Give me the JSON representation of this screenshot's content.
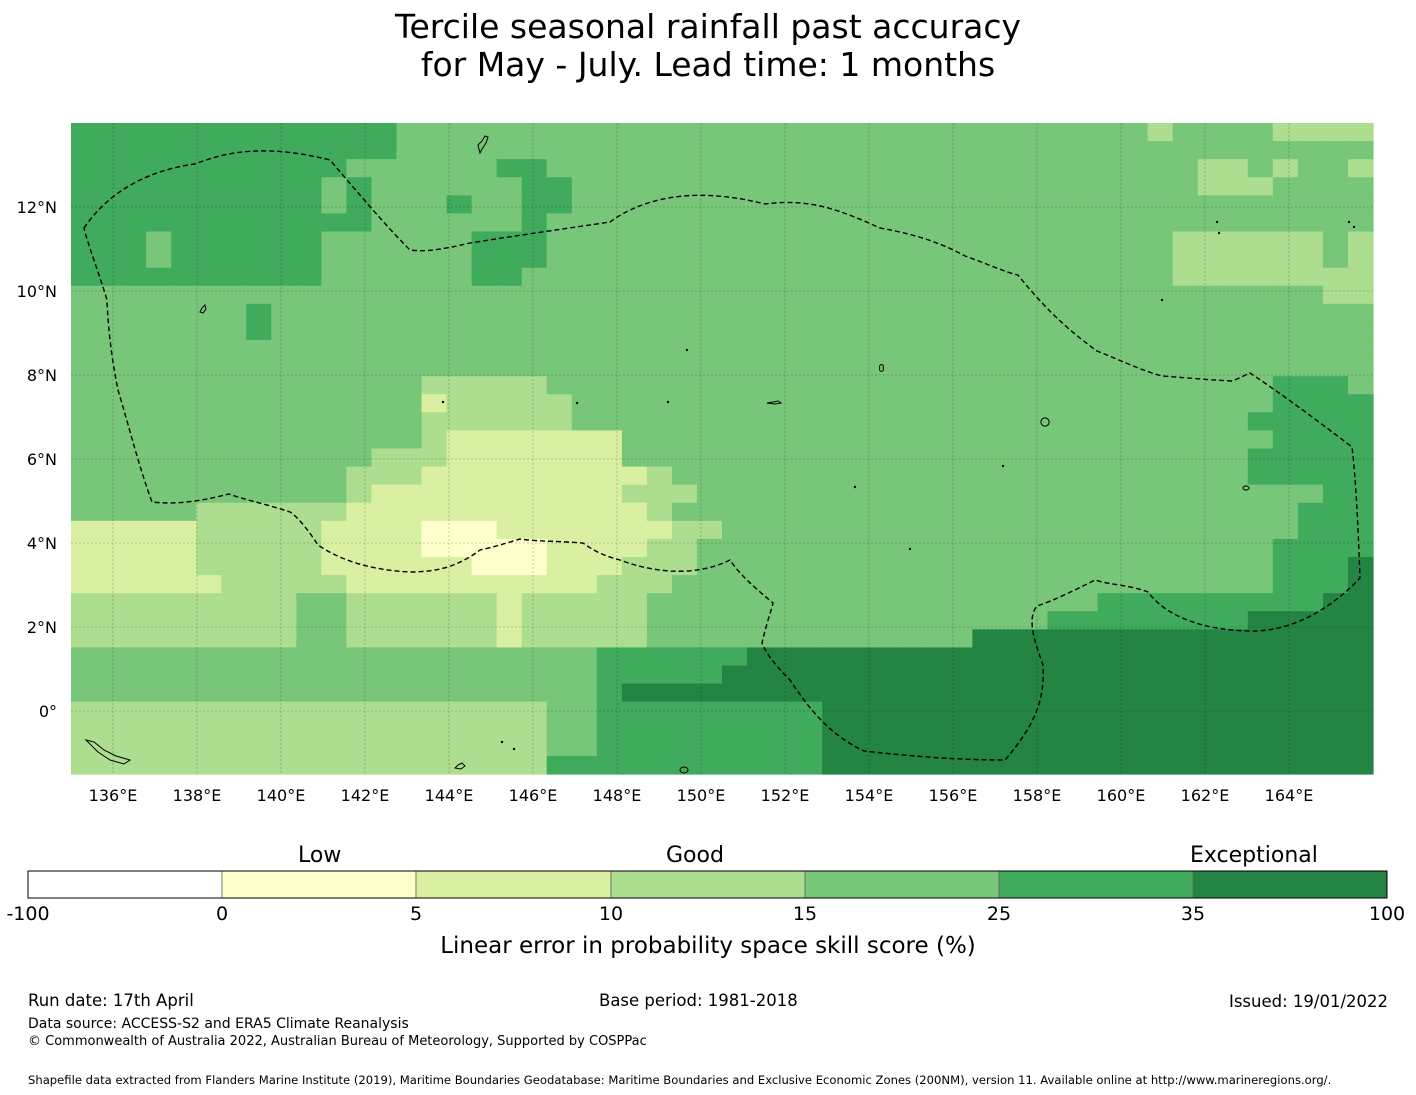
{
  "title": {
    "line1": "Tercile seasonal rainfall past accuracy",
    "line2": "for May - July. Lead time: 1 months"
  },
  "map": {
    "lon_range": [
      135,
      166
    ],
    "lat_range": [
      -1.5,
      14
    ],
    "x_ticks": [
      "136°E",
      "138°E",
      "140°E",
      "142°E",
      "144°E",
      "146°E",
      "148°E",
      "150°E",
      "152°E",
      "154°E",
      "156°E",
      "158°E",
      "160°E",
      "162°E",
      "164°E"
    ],
    "y_ticks": [
      "12°N",
      "10°N",
      "8°N",
      "6°N",
      "4°N",
      "2°N",
      "0°"
    ],
    "cell_colors": {
      "lt0": "#ffffff",
      "0-5": "#ffffcc",
      "5-10": "#d9f0a3",
      "10-15": "#addd8e",
      "15-25": "#78c679",
      "25-35": "#41ab5d",
      "35-100": "#238443"
    },
    "grid_rows": [
      "4444444444444333333333333333333333333333333233332222",
      "4444444444444333333333333333333333333333333333333333",
      "4444444444433333344333333333333333333333333332232332",
      "4444444444343333334433333333333333333333333332223333",
      "4444444444343334334433333333333333333333333333333333",
      "4444444444443333334333333333333333333333333333333333",
      "4443444444333333444333333333333333333333333322222232",
      "4443444444333333444333333333333333333333333322222232",
      "4444444444333333443333333333333333333333333322222222",
      "3333333333333333333333333333333333333333333333333322",
      "3333333433333333333333333333333333333333333333333333",
      "3333333433333333333333333333333333333333333333333333",
      "3333333333333333333333333333333333333333333333333333",
      "3333333333333333333333333333333333333333333333333333",
      "3333333333333322222333333333333333333333333333334443",
      "3333333333333312222233333333333333333333333333334444",
      "3333333333333322222233333333333333333333333333344444",
      "3333333333333321111111333333333333333333333333334444",
      "3333333333332221111111333333333333333333333333344444",
      "3333333333322211111111123333333333333333333333344444",
      "3333333333321111111111222333333333333333333333333344",
      "3333322222211111111111123333333333333333333333333444",
      "1111122222111100011111112233333333333333333333333444",
      "1111122222111100000111122333333333333333333333334444",
      "1111122222111111000111222333333333333333333333334445",
      "1111112222211111111112223333333333333333333333334445",
      "2222222223322222212222233333333333333333344444444455",
      "2222222223322222212222233333333333333334444444455555",
      "2222222223322222212222233333333333335555555555555555",
      "3333333333333333333334444445555555555555555555555555",
      "3333333333333333333334444455555555555555555555555555",
      "3333333333333333333334555555555555555555555555555555",
      "2222222222222222222334444444445555555555555555555555",
      "2222222222222222222334444444445555555555555555555555",
      "2222222222222222222334444444445555555555555555555555",
      "2222222222222222222444444444445555555555555555555555"
    ]
  },
  "colorbar": {
    "categories": [
      "Low",
      "Good",
      "Exceptional"
    ],
    "ticks": [
      "-100",
      "0",
      "5",
      "10",
      "15",
      "25",
      "35",
      "100"
    ],
    "colors": [
      "#ffffff",
      "#ffffcc",
      "#d9f0a3",
      "#addd8e",
      "#78c679",
      "#41ab5d",
      "#238443"
    ],
    "label": "Linear error in probability space skill score (%)"
  },
  "footer": {
    "run_date": "Run date: 17th April",
    "base_period": "Base period: 1981-2018",
    "issued": "Issued: 19/01/2022",
    "data_source": "Data source: ACCESS-S2 and ERA5 Climate Reanalysis",
    "copyright": "© Commonwealth of Australia 2022, Australian Bureau of Meteorology, Supported by COSPPac",
    "shapefile": "Shapefile data extracted from Flanders Marine Institute (2019), Maritime Boundaries Geodatabase: Maritime Boundaries and Exclusive Economic Zones (200NM), version 11. Available online at http://www.marineregions.org/."
  }
}
